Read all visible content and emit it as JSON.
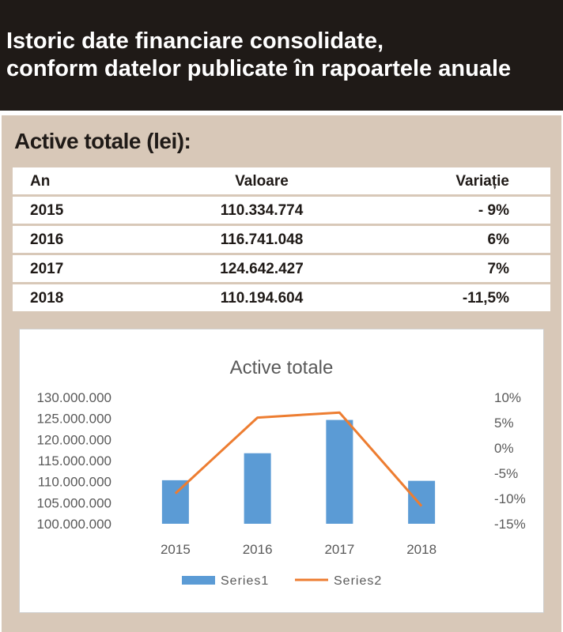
{
  "header": {
    "line1": "Istoric date financiare consolidate,",
    "line2": "conform datelor publicate în rapoartele anuale"
  },
  "section_title": "Active totale (lei):",
  "table": {
    "headers": [
      "An",
      "Valoare",
      "Variație"
    ],
    "rows": [
      [
        "2015",
        "110.334.774",
        "- 9%"
      ],
      [
        "2016",
        "116.741.048",
        "6%"
      ],
      [
        "2017",
        "124.642.427",
        "7%"
      ],
      [
        "2018",
        "110.194.604",
        "-11,5%"
      ]
    ]
  },
  "colors": {
    "header_bg": "#1f1a17",
    "panel_bg": "#d8c8b8",
    "bar": "#5b9bd5",
    "line": "#ed7d31"
  },
  "chart_data": {
    "type": "bar",
    "title": "Active totale",
    "categories": [
      "2015",
      "2016",
      "2017",
      "2018"
    ],
    "series": [
      {
        "name": "Series1",
        "type": "bar",
        "axis": "left",
        "values": [
          110334774,
          116741048,
          124642427,
          110194604
        ]
      },
      {
        "name": "Series2",
        "type": "line",
        "axis": "right",
        "values": [
          -9,
          6,
          7,
          -11.5
        ]
      }
    ],
    "ylim": [
      100000000,
      130000000
    ],
    "y_ticks": [
      "100.000.000",
      "105.000.000",
      "110.000.000",
      "115.000.000",
      "120.000.000",
      "125.000.000",
      "130.000.000"
    ],
    "y2lim": [
      -15,
      10
    ],
    "y2_ticks": [
      "-15%",
      "-10%",
      "-5%",
      "0%",
      "5%",
      "10%"
    ],
    "grid": false,
    "legend": "bottom"
  }
}
